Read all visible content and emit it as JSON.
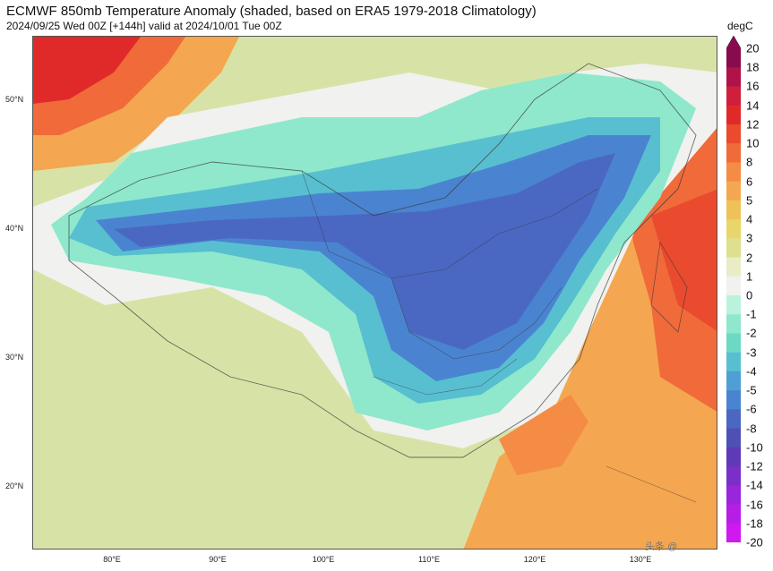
{
  "title": "ECMWF 850mb Temperature Anomaly (shaded, based on ERA5 1979-2018 Climatology)",
  "subtitle": "2024/09/25 Wed 00Z [+144h] valid at 2024/10/01 Tue 00Z",
  "map": {
    "lat_labels": [
      "50°N",
      "40°N",
      "30°N",
      "20°N"
    ],
    "lon_labels": [
      "80°E",
      "90°E",
      "100°E",
      "110°E",
      "120°E",
      "130°E"
    ],
    "background_color": "#d7e3a6"
  },
  "colorbar": {
    "unit": "degC",
    "labels": [
      "20",
      "18",
      "16",
      "14",
      "12",
      "10",
      "8",
      "6",
      "5",
      "4",
      "3",
      "2",
      "1",
      "0",
      "-1",
      "-2",
      "-3",
      "-4",
      "-5",
      "-6",
      "-8",
      "-10",
      "-12",
      "-14",
      "-16",
      "-18",
      "-20"
    ],
    "colors": [
      "#8a0a4e",
      "#b0124a",
      "#cf1f3c",
      "#e02a2a",
      "#ea4a2e",
      "#f06a3a",
      "#f48c45",
      "#f5a650",
      "#efc159",
      "#e8d66a",
      "#dde08e",
      "#e9edc6",
      "#f1f1ef",
      "#b9f3dc",
      "#8fe8cc",
      "#6ed9c2",
      "#58bfd0",
      "#4f9fd6",
      "#4a84d0",
      "#4a68c2",
      "#4f50b4",
      "#5e3ab6",
      "#7a2fc8",
      "#9a25da",
      "#b61ee6",
      "#d018f0"
    ]
  },
  "watermark": "头条 @"
}
